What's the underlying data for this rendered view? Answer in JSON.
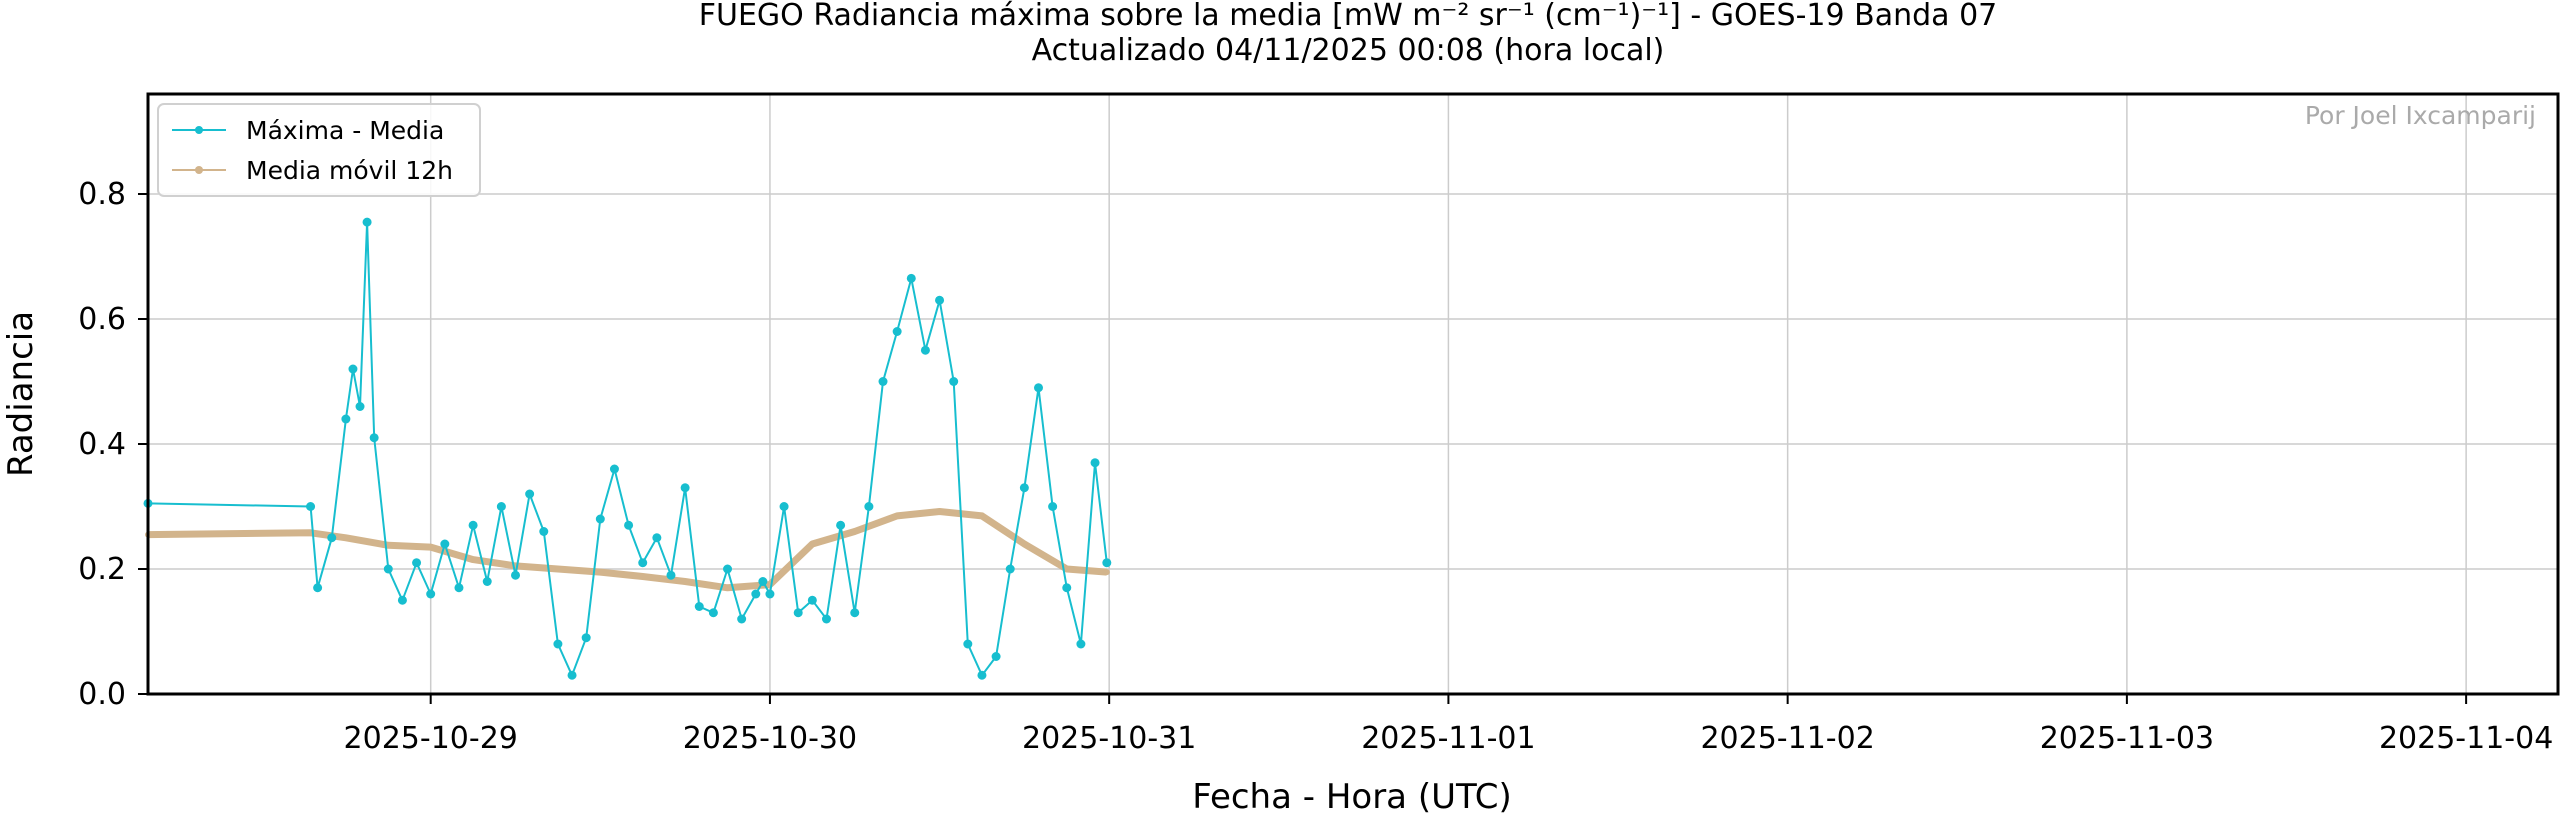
{
  "chart_data": {
    "type": "line",
    "title": "FUEGO Radiancia máxima sobre la media [mW m⁻² sr⁻¹ (cm⁻¹)⁻¹] - GOES-19 Banda 07",
    "subtitle": "Actualizado 04/11/2025 00:08 (hora local)",
    "xlabel": "Fecha - Hora (UTC)",
    "ylabel": "Radiancia",
    "watermark": "Por Joel Ixcamparij",
    "x_type": "datetime",
    "xlim": [
      "2025-10-28T04:00",
      "2025-11-04T06:30"
    ],
    "ylim": [
      0,
      0.96
    ],
    "x_ticks": [
      "2025-10-29",
      "2025-10-30",
      "2025-10-31",
      "2025-11-01",
      "2025-11-02",
      "2025-11-03",
      "2025-11-04"
    ],
    "y_ticks": [
      0.0,
      0.2,
      0.4,
      0.6,
      0.8
    ],
    "y_tick_labels": [
      "0.0",
      "0.2",
      "0.4",
      "0.6",
      "0.8"
    ],
    "grid": true,
    "legend": "top-left",
    "colors": {
      "max": "#17becf",
      "mean": "#d2b48c"
    },
    "series": [
      {
        "name": "Máxima - Media",
        "color": "#17becf",
        "points": [
          [
            "2025-10-28T04:00",
            0.305
          ],
          [
            "2025-10-28T15:30",
            0.3
          ],
          [
            "2025-10-28T16:00",
            0.17
          ],
          [
            "2025-10-28T17:00",
            0.25
          ],
          [
            "2025-10-28T18:00",
            0.44
          ],
          [
            "2025-10-28T18:30",
            0.52
          ],
          [
            "2025-10-28T19:00",
            0.46
          ],
          [
            "2025-10-28T19:30",
            0.755
          ],
          [
            "2025-10-28T20:00",
            0.41
          ],
          [
            "2025-10-28T21:00",
            0.2
          ],
          [
            "2025-10-28T22:00",
            0.15
          ],
          [
            "2025-10-28T23:00",
            0.21
          ],
          [
            "2025-10-29T00:00",
            0.16
          ],
          [
            "2025-10-29T01:00",
            0.24
          ],
          [
            "2025-10-29T02:00",
            0.17
          ],
          [
            "2025-10-29T03:00",
            0.27
          ],
          [
            "2025-10-29T04:00",
            0.18
          ],
          [
            "2025-10-29T05:00",
            0.3
          ],
          [
            "2025-10-29T06:00",
            0.19
          ],
          [
            "2025-10-29T07:00",
            0.32
          ],
          [
            "2025-10-29T08:00",
            0.26
          ],
          [
            "2025-10-29T09:00",
            0.08
          ],
          [
            "2025-10-29T10:00",
            0.03
          ],
          [
            "2025-10-29T11:00",
            0.09
          ],
          [
            "2025-10-29T12:00",
            0.28
          ],
          [
            "2025-10-29T13:00",
            0.36
          ],
          [
            "2025-10-29T14:00",
            0.27
          ],
          [
            "2025-10-29T15:00",
            0.21
          ],
          [
            "2025-10-29T16:00",
            0.25
          ],
          [
            "2025-10-29T17:00",
            0.19
          ],
          [
            "2025-10-29T18:00",
            0.33
          ],
          [
            "2025-10-29T19:00",
            0.14
          ],
          [
            "2025-10-29T20:00",
            0.13
          ],
          [
            "2025-10-29T21:00",
            0.2
          ],
          [
            "2025-10-29T22:00",
            0.12
          ],
          [
            "2025-10-29T23:00",
            0.16
          ],
          [
            "2025-10-30T00:00",
            0.16
          ],
          [
            "2025-10-29T23:30",
            0.18
          ],
          [
            "2025-10-30T01:00",
            0.3
          ],
          [
            "2025-10-30T02:00",
            0.13
          ],
          [
            "2025-10-30T03:00",
            0.15
          ],
          [
            "2025-10-30T04:00",
            0.12
          ],
          [
            "2025-10-30T05:00",
            0.27
          ],
          [
            "2025-10-30T06:00",
            0.13
          ],
          [
            "2025-10-30T07:00",
            0.3
          ],
          [
            "2025-10-30T08:00",
            0.5
          ],
          [
            "2025-10-30T09:00",
            0.58
          ],
          [
            "2025-10-30T10:00",
            0.665
          ],
          [
            "2025-10-30T11:00",
            0.55
          ],
          [
            "2025-10-30T12:00",
            0.63
          ],
          [
            "2025-10-30T13:00",
            0.5
          ],
          [
            "2025-10-30T14:00",
            0.08
          ],
          [
            "2025-10-30T15:00",
            0.03
          ],
          [
            "2025-10-30T16:00",
            0.06
          ],
          [
            "2025-10-30T17:00",
            0.2
          ],
          [
            "2025-10-30T18:00",
            0.33
          ],
          [
            "2025-10-30T19:00",
            0.49
          ],
          [
            "2025-10-30T20:00",
            0.3
          ],
          [
            "2025-10-30T21:00",
            0.17
          ],
          [
            "2025-10-30T22:00",
            0.08
          ],
          [
            "2025-10-30T23:00",
            0.37
          ],
          [
            "2025-10-30T23:50",
            0.21
          ]
        ]
      },
      {
        "name": "Media móvil 12h",
        "color": "#d2b48c",
        "points": [
          [
            "2025-10-28T04:00",
            0.255
          ],
          [
            "2025-10-28T15:30",
            0.258
          ],
          [
            "2025-10-28T18:00",
            0.25
          ],
          [
            "2025-10-28T21:00",
            0.238
          ],
          [
            "2025-10-29T00:00",
            0.235
          ],
          [
            "2025-10-29T03:00",
            0.215
          ],
          [
            "2025-10-29T06:00",
            0.205
          ],
          [
            "2025-10-29T09:00",
            0.2
          ],
          [
            "2025-10-29T12:00",
            0.195
          ],
          [
            "2025-10-29T15:00",
            0.188
          ],
          [
            "2025-10-29T18:00",
            0.18
          ],
          [
            "2025-10-29T21:00",
            0.17
          ],
          [
            "2025-10-30T00:00",
            0.175
          ],
          [
            "2025-10-30T03:00",
            0.24
          ],
          [
            "2025-10-30T06:00",
            0.26
          ],
          [
            "2025-10-30T09:00",
            0.285
          ],
          [
            "2025-10-30T12:00",
            0.292
          ],
          [
            "2025-10-30T15:00",
            0.285
          ],
          [
            "2025-10-30T18:00",
            0.24
          ],
          [
            "2025-10-30T21:00",
            0.2
          ],
          [
            "2025-10-30T23:50",
            0.195
          ]
        ]
      }
    ]
  }
}
